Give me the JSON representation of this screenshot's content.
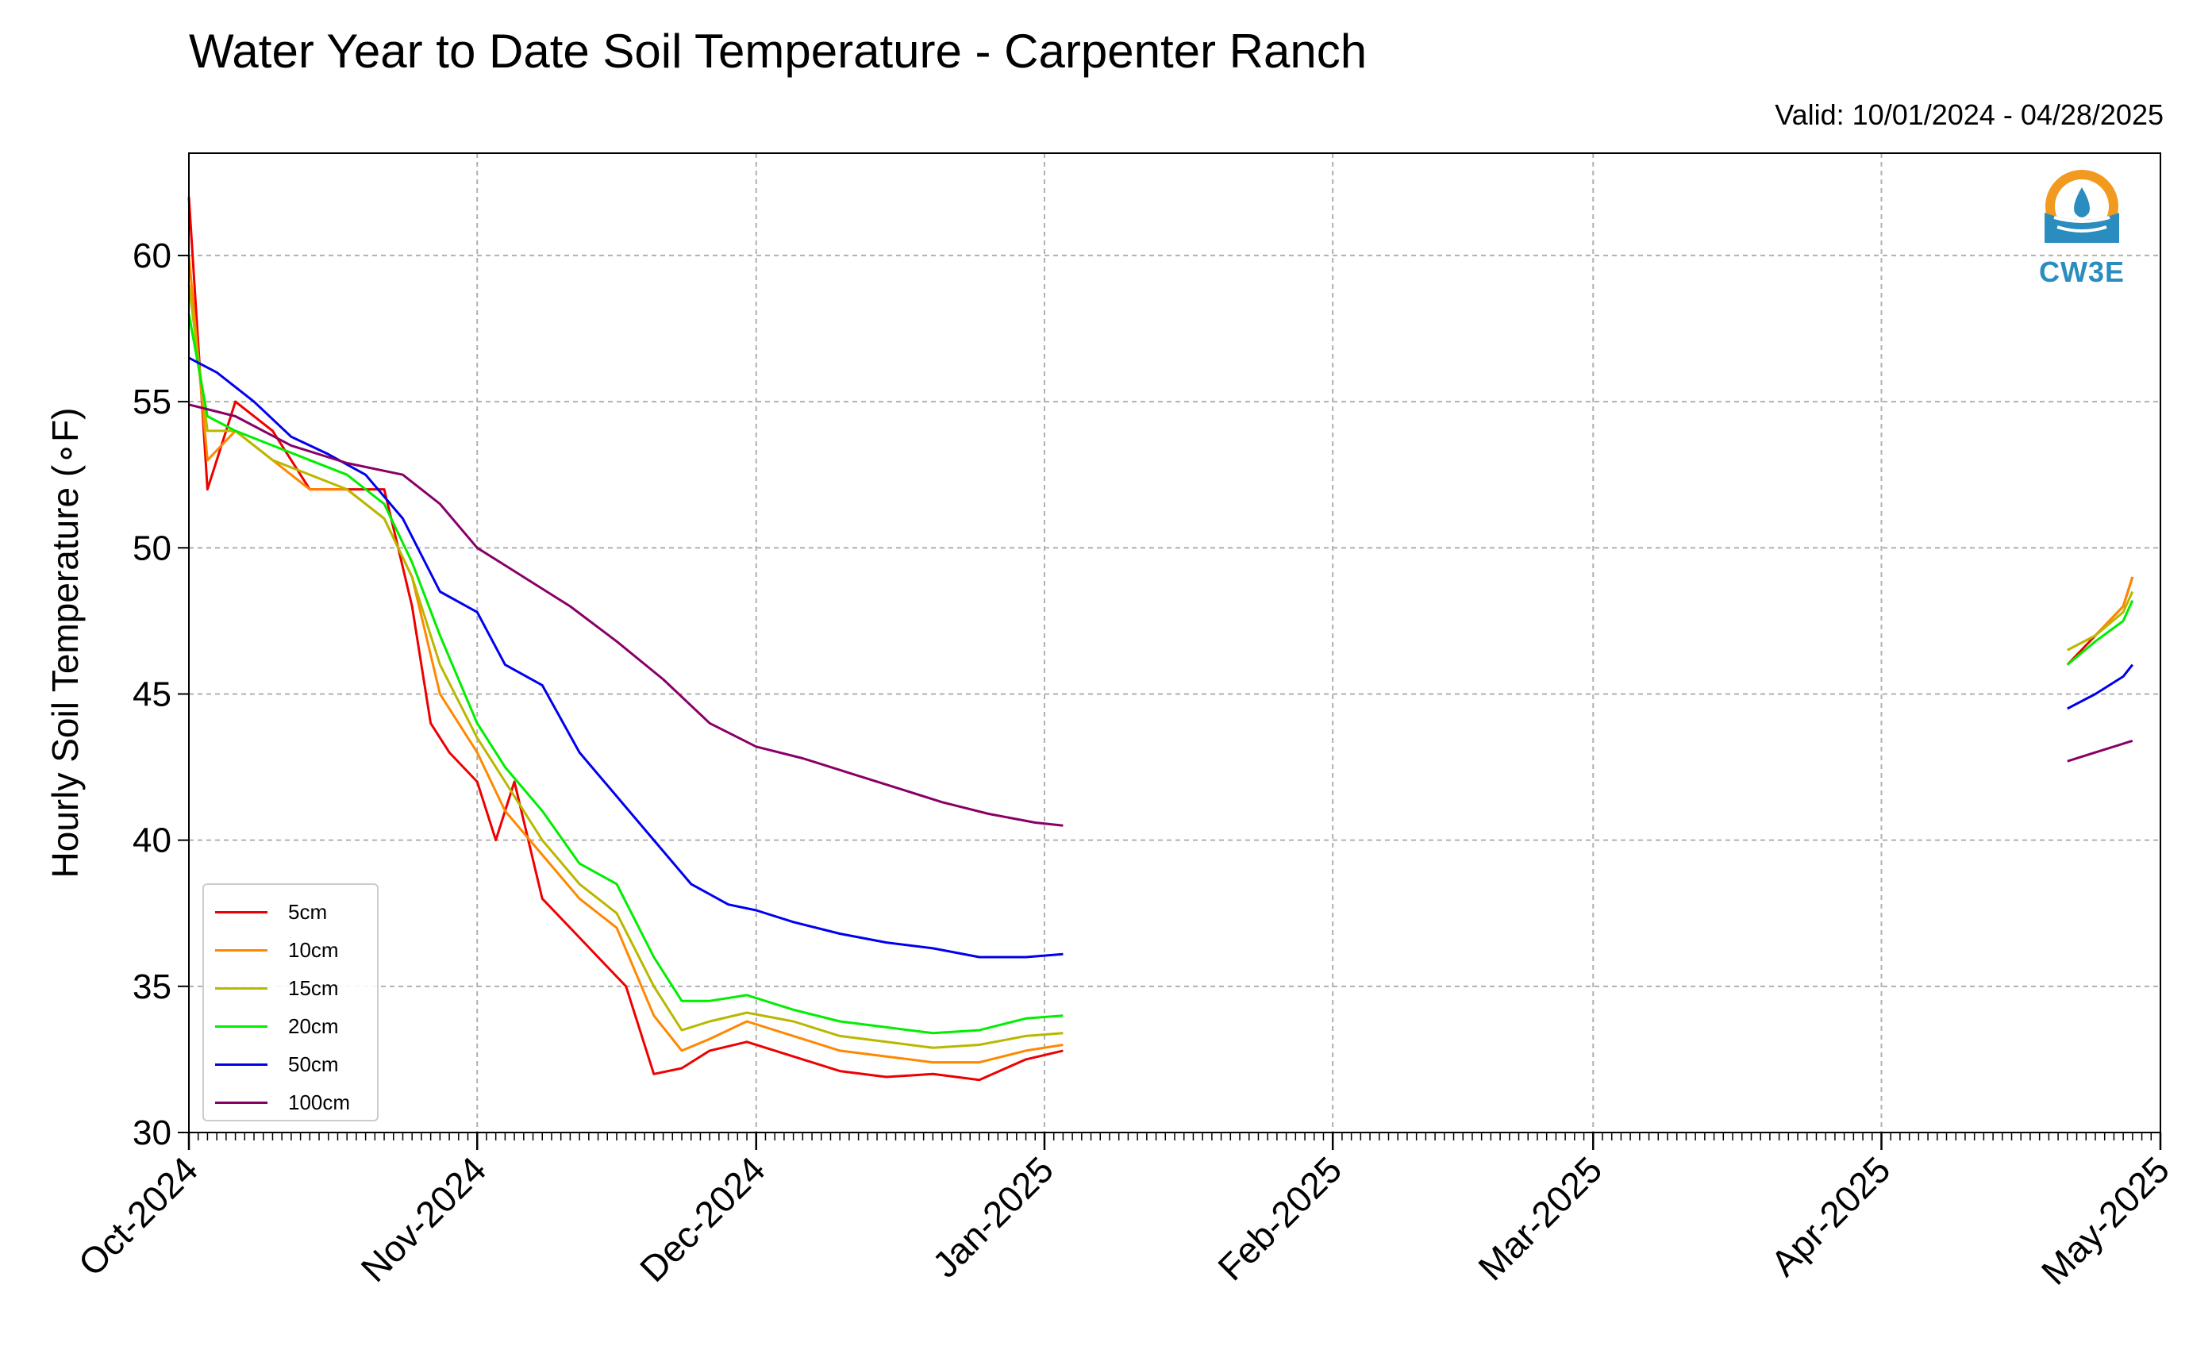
{
  "header": {
    "title": "Water Year to Date Soil Temperature - Carpenter Ranch",
    "valid": "Valid: 10/01/2024 - 04/28/2025"
  },
  "logo": {
    "text": "CW3E",
    "icon": "cw3e-water-drop-logo"
  },
  "chart_data": {
    "type": "line",
    "title": "Water Year to Date Soil Temperature - Carpenter Ranch",
    "ylabel": "Hourly Soil Temperature (∘F)",
    "xlabel": "",
    "ylim": [
      30,
      63.5
    ],
    "xlim": [
      "2024-10-01",
      "2025-05-01"
    ],
    "yticks": [
      30,
      35,
      40,
      45,
      50,
      55,
      60
    ],
    "xticks": [
      "Oct-2024",
      "Nov-2024",
      "Dec-2024",
      "Jan-2025",
      "Feb-2025",
      "Mar-2025",
      "Apr-2025",
      "May-2025"
    ],
    "xtick_dates": [
      "2024-10-01",
      "2024-11-01",
      "2024-12-01",
      "2025-01-01",
      "2025-02-01",
      "2025-03-01",
      "2025-04-01",
      "2025-05-01"
    ],
    "grid": true,
    "legend_position": "lower-left",
    "series": [
      {
        "name": "5cm",
        "color": "#ee0000",
        "points": [
          [
            "2024-10-01",
            62
          ],
          [
            "2024-10-03",
            52
          ],
          [
            "2024-10-06",
            55
          ],
          [
            "2024-10-10",
            54
          ],
          [
            "2024-10-14",
            52
          ],
          [
            "2024-10-18",
            52
          ],
          [
            "2024-10-22",
            52
          ],
          [
            "2024-10-25",
            48
          ],
          [
            "2024-10-27",
            44
          ],
          [
            "2024-10-29",
            43
          ],
          [
            "2024-11-01",
            42
          ],
          [
            "2024-11-03",
            40
          ],
          [
            "2024-11-05",
            42
          ],
          [
            "2024-11-08",
            38
          ],
          [
            "2024-11-11",
            37
          ],
          [
            "2024-11-14",
            36
          ],
          [
            "2024-11-17",
            35
          ],
          [
            "2024-11-20",
            32
          ],
          [
            "2024-11-23",
            32.2
          ],
          [
            "2024-11-26",
            32.8
          ],
          [
            "2024-11-30",
            33.1
          ],
          [
            "2024-12-05",
            32.6
          ],
          [
            "2024-12-10",
            32.1
          ],
          [
            "2024-12-15",
            31.9
          ],
          [
            "2024-12-20",
            32
          ],
          [
            "2024-12-25",
            31.8
          ],
          [
            "2024-12-30",
            32.5
          ],
          [
            "2025-01-03",
            32.8
          ]
        ],
        "late": [
          [
            "2025-04-21",
            46
          ],
          [
            "2025-04-24",
            47
          ],
          [
            "2025-04-27",
            48
          ],
          [
            "2025-04-28",
            49
          ]
        ]
      },
      {
        "name": "10cm",
        "color": "#ff8800",
        "points": [
          [
            "2024-10-01",
            60
          ],
          [
            "2024-10-03",
            53
          ],
          [
            "2024-10-06",
            54
          ],
          [
            "2024-10-10",
            53
          ],
          [
            "2024-10-14",
            52
          ],
          [
            "2024-10-18",
            52
          ],
          [
            "2024-10-22",
            51
          ],
          [
            "2024-10-25",
            49
          ],
          [
            "2024-10-28",
            45
          ],
          [
            "2024-11-01",
            43
          ],
          [
            "2024-11-04",
            41
          ],
          [
            "2024-11-08",
            39.5
          ],
          [
            "2024-11-12",
            38
          ],
          [
            "2024-11-16",
            37
          ],
          [
            "2024-11-20",
            34
          ],
          [
            "2024-11-23",
            32.8
          ],
          [
            "2024-11-26",
            33.2
          ],
          [
            "2024-11-30",
            33.8
          ],
          [
            "2024-12-05",
            33.3
          ],
          [
            "2024-12-10",
            32.8
          ],
          [
            "2024-12-15",
            32.6
          ],
          [
            "2024-12-20",
            32.4
          ],
          [
            "2024-12-25",
            32.4
          ],
          [
            "2024-12-30",
            32.8
          ],
          [
            "2025-01-03",
            33
          ]
        ],
        "late": [
          [
            "2025-04-21",
            46.5
          ],
          [
            "2025-04-24",
            47
          ],
          [
            "2025-04-27",
            48
          ],
          [
            "2025-04-28",
            49
          ]
        ]
      },
      {
        "name": "15cm",
        "color": "#b8b800",
        "points": [
          [
            "2024-10-01",
            59
          ],
          [
            "2024-10-03",
            54
          ],
          [
            "2024-10-06",
            54
          ],
          [
            "2024-10-10",
            53
          ],
          [
            "2024-10-14",
            52.5
          ],
          [
            "2024-10-18",
            52
          ],
          [
            "2024-10-22",
            51
          ],
          [
            "2024-10-25",
            49
          ],
          [
            "2024-10-28",
            46
          ],
          [
            "2024-11-01",
            43.5
          ],
          [
            "2024-11-04",
            42
          ],
          [
            "2024-11-08",
            40
          ],
          [
            "2024-11-12",
            38.5
          ],
          [
            "2024-11-16",
            37.5
          ],
          [
            "2024-11-20",
            35
          ],
          [
            "2024-11-23",
            33.5
          ],
          [
            "2024-11-26",
            33.8
          ],
          [
            "2024-11-30",
            34.1
          ],
          [
            "2024-12-05",
            33.8
          ],
          [
            "2024-12-10",
            33.3
          ],
          [
            "2024-12-15",
            33.1
          ],
          [
            "2024-12-20",
            32.9
          ],
          [
            "2024-12-25",
            33
          ],
          [
            "2024-12-30",
            33.3
          ],
          [
            "2025-01-03",
            33.4
          ]
        ],
        "late": [
          [
            "2025-04-21",
            46.5
          ],
          [
            "2025-04-24",
            47
          ],
          [
            "2025-04-27",
            47.8
          ],
          [
            "2025-04-28",
            48.5
          ]
        ]
      },
      {
        "name": "20cm",
        "color": "#00ee00",
        "points": [
          [
            "2024-10-01",
            58
          ],
          [
            "2024-10-03",
            54.5
          ],
          [
            "2024-10-06",
            54
          ],
          [
            "2024-10-10",
            53.5
          ],
          [
            "2024-10-14",
            53
          ],
          [
            "2024-10-18",
            52.5
          ],
          [
            "2024-10-22",
            51.5
          ],
          [
            "2024-10-25",
            49.5
          ],
          [
            "2024-10-28",
            47
          ],
          [
            "2024-11-01",
            44
          ],
          [
            "2024-11-04",
            42.5
          ],
          [
            "2024-11-08",
            41
          ],
          [
            "2024-11-12",
            39.2
          ],
          [
            "2024-11-16",
            38.5
          ],
          [
            "2024-11-20",
            36
          ],
          [
            "2024-11-23",
            34.5
          ],
          [
            "2024-11-26",
            34.5
          ],
          [
            "2024-11-30",
            34.7
          ],
          [
            "2024-12-05",
            34.2
          ],
          [
            "2024-12-10",
            33.8
          ],
          [
            "2024-12-15",
            33.6
          ],
          [
            "2024-12-20",
            33.4
          ],
          [
            "2024-12-25",
            33.5
          ],
          [
            "2024-12-30",
            33.9
          ],
          [
            "2025-01-03",
            34
          ]
        ],
        "late": [
          [
            "2025-04-21",
            46
          ],
          [
            "2025-04-24",
            46.8
          ],
          [
            "2025-04-27",
            47.5
          ],
          [
            "2025-04-28",
            48.2
          ]
        ]
      },
      {
        "name": "50cm",
        "color": "#0000ee",
        "points": [
          [
            "2024-10-01",
            56.5
          ],
          [
            "2024-10-04",
            56
          ],
          [
            "2024-10-08",
            55
          ],
          [
            "2024-10-12",
            53.8
          ],
          [
            "2024-10-16",
            53.2
          ],
          [
            "2024-10-20",
            52.5
          ],
          [
            "2024-10-24",
            51
          ],
          [
            "2024-10-28",
            48.5
          ],
          [
            "2024-11-01",
            47.8
          ],
          [
            "2024-11-04",
            46
          ],
          [
            "2024-11-08",
            45.3
          ],
          [
            "2024-11-12",
            43
          ],
          [
            "2024-11-16",
            41.5
          ],
          [
            "2024-11-20",
            40
          ],
          [
            "2024-11-24",
            38.5
          ],
          [
            "2024-11-28",
            37.8
          ],
          [
            "2024-12-01",
            37.6
          ],
          [
            "2024-12-05",
            37.2
          ],
          [
            "2024-12-10",
            36.8
          ],
          [
            "2024-12-15",
            36.5
          ],
          [
            "2024-12-20",
            36.3
          ],
          [
            "2024-12-25",
            36
          ],
          [
            "2024-12-30",
            36
          ],
          [
            "2025-01-03",
            36.1
          ]
        ],
        "late": [
          [
            "2025-04-21",
            44.5
          ],
          [
            "2025-04-24",
            45
          ],
          [
            "2025-04-27",
            45.6
          ],
          [
            "2025-04-28",
            46
          ]
        ]
      },
      {
        "name": "100cm",
        "color": "#880066",
        "points": [
          [
            "2024-10-01",
            54.9
          ],
          [
            "2024-10-06",
            54.5
          ],
          [
            "2024-10-12",
            53.5
          ],
          [
            "2024-10-18",
            52.9
          ],
          [
            "2024-10-24",
            52.5
          ],
          [
            "2024-10-28",
            51.5
          ],
          [
            "2024-11-01",
            50
          ],
          [
            "2024-11-06",
            49
          ],
          [
            "2024-11-11",
            48
          ],
          [
            "2024-11-16",
            46.8
          ],
          [
            "2024-11-21",
            45.5
          ],
          [
            "2024-11-26",
            44
          ],
          [
            "2024-12-01",
            43.2
          ],
          [
            "2024-12-06",
            42.8
          ],
          [
            "2024-12-11",
            42.3
          ],
          [
            "2024-12-16",
            41.8
          ],
          [
            "2024-12-21",
            41.3
          ],
          [
            "2024-12-26",
            40.9
          ],
          [
            "2024-12-31",
            40.6
          ],
          [
            "2025-01-03",
            40.5
          ]
        ],
        "late": [
          [
            "2025-04-21",
            42.7
          ],
          [
            "2025-04-24",
            43
          ],
          [
            "2025-04-27",
            43.3
          ],
          [
            "2025-04-28",
            43.4
          ]
        ]
      }
    ]
  }
}
